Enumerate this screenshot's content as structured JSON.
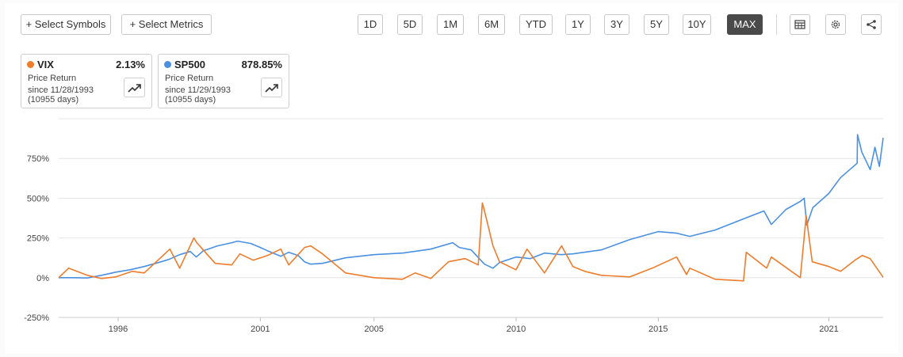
{
  "toolbar": {
    "select_symbols": "+ Select Symbols",
    "select_metrics": "+ Select Metrics",
    "ranges": [
      "1D",
      "5D",
      "1M",
      "6M",
      "YTD",
      "1Y",
      "3Y",
      "5Y",
      "10Y",
      "MAX"
    ],
    "active_range": "MAX",
    "icons": [
      "table-icon",
      "gear-icon",
      "share-icon"
    ]
  },
  "legend_cards": [
    {
      "symbol": "VIX",
      "color": "#ee7c2b",
      "value": "2.13%",
      "metric": "Price Return",
      "since": "since 11/28/1993",
      "days": "(10955 days)"
    },
    {
      "symbol": "SP500",
      "color": "#4a90e2",
      "value": "878.85%",
      "metric": "Price Return",
      "since": "since 11/29/1993",
      "days": "(10955 days)"
    }
  ],
  "chart_data": {
    "type": "line",
    "y_unit": "%",
    "ylim": [
      -250,
      1000
    ],
    "yticks": [
      -250,
      0,
      250,
      500,
      750
    ],
    "ytick_labels": [
      "-250%",
      "0%",
      "250%",
      "500%",
      "750%"
    ],
    "xlim": [
      "1993-11-28",
      "2022-11-30"
    ],
    "xticks": [
      "1996",
      "2001",
      "2005",
      "2010",
      "2015",
      "2021"
    ],
    "grid": "horizontal",
    "series": [
      {
        "name": "SP500",
        "color": "#4a90e2",
        "points": [
          [
            "1993-11-28",
            0
          ],
          [
            "1994-06-01",
            0
          ],
          [
            "1994-12-01",
            -2
          ],
          [
            "1995-06-01",
            15
          ],
          [
            "1995-12-01",
            35
          ],
          [
            "1996-06-01",
            50
          ],
          [
            "1996-12-01",
            70
          ],
          [
            "1997-06-01",
            95
          ],
          [
            "1997-10-15",
            115
          ],
          [
            "1998-03-01",
            145
          ],
          [
            "1998-07-15",
            165
          ],
          [
            "1998-10-01",
            130
          ],
          [
            "1998-12-31",
            170
          ],
          [
            "1999-07-01",
            200
          ],
          [
            "1999-12-31",
            220
          ],
          [
            "2000-03-15",
            230
          ],
          [
            "2000-09-01",
            215
          ],
          [
            "2000-12-31",
            190
          ],
          [
            "2001-04-01",
            170
          ],
          [
            "2001-09-21",
            135
          ],
          [
            "2001-12-31",
            160
          ],
          [
            "2002-05-01",
            140
          ],
          [
            "2002-07-23",
            100
          ],
          [
            "2002-10-09",
            85
          ],
          [
            "2003-03-11",
            90
          ],
          [
            "2003-12-31",
            125
          ],
          [
            "2004-12-31",
            145
          ],
          [
            "2005-12-31",
            155
          ],
          [
            "2006-12-31",
            180
          ],
          [
            "2007-10-09",
            220
          ],
          [
            "2008-01-01",
            190
          ],
          [
            "2008-06-01",
            175
          ],
          [
            "2008-11-20",
            85
          ],
          [
            "2009-03-09",
            60
          ],
          [
            "2009-06-01",
            95
          ],
          [
            "2009-12-31",
            130
          ],
          [
            "2010-07-01",
            120
          ],
          [
            "2010-12-31",
            155
          ],
          [
            "2011-08-01",
            145
          ],
          [
            "2011-12-31",
            150
          ],
          [
            "2012-12-31",
            175
          ],
          [
            "2013-12-31",
            240
          ],
          [
            "2014-12-31",
            290
          ],
          [
            "2015-08-25",
            280
          ],
          [
            "2016-02-11",
            260
          ],
          [
            "2016-12-31",
            300
          ],
          [
            "2017-12-31",
            370
          ],
          [
            "2018-09-20",
            420
          ],
          [
            "2018-12-24",
            335
          ],
          [
            "2019-07-01",
            430
          ],
          [
            "2019-12-31",
            480
          ],
          [
            "2020-02-19",
            500
          ],
          [
            "2020-03-23",
            330
          ],
          [
            "2020-06-08",
            440
          ],
          [
            "2020-12-31",
            530
          ],
          [
            "2021-06-01",
            630
          ],
          [
            "2021-12-31",
            720
          ],
          [
            "2022-01-04",
            900
          ],
          [
            "2022-03-01",
            790
          ],
          [
            "2022-06-16",
            680
          ],
          [
            "2022-08-16",
            820
          ],
          [
            "2022-10-12",
            700
          ],
          [
            "2022-11-30",
            880
          ]
        ]
      },
      {
        "name": "VIX",
        "color": "#ee7c2b",
        "points": [
          [
            "1993-11-28",
            0
          ],
          [
            "1994-04-04",
            60
          ],
          [
            "1994-12-01",
            15
          ],
          [
            "1995-06-01",
            -5
          ],
          [
            "1995-12-01",
            5
          ],
          [
            "1996-07-01",
            40
          ],
          [
            "1996-12-01",
            30
          ],
          [
            "1997-10-27",
            180
          ],
          [
            "1998-03-01",
            60
          ],
          [
            "1998-08-31",
            250
          ],
          [
            "1998-10-08",
            220
          ],
          [
            "1999-06-01",
            90
          ],
          [
            "1999-12-31",
            80
          ],
          [
            "2000-04-14",
            150
          ],
          [
            "2000-10-01",
            110
          ],
          [
            "2001-04-04",
            140
          ],
          [
            "2001-09-21",
            180
          ],
          [
            "2002-01-01",
            80
          ],
          [
            "2002-07-24",
            190
          ],
          [
            "2002-10-09",
            200
          ],
          [
            "2003-03-11",
            150
          ],
          [
            "2003-12-31",
            30
          ],
          [
            "2004-12-31",
            0
          ],
          [
            "2005-12-31",
            -10
          ],
          [
            "2006-06-14",
            30
          ],
          [
            "2006-12-31",
            -5
          ],
          [
            "2007-08-16",
            100
          ],
          [
            "2007-11-26",
            110
          ],
          [
            "2008-03-17",
            120
          ],
          [
            "2008-09-01",
            80
          ],
          [
            "2008-10-24",
            470
          ],
          [
            "2008-11-20",
            420
          ],
          [
            "2009-03-09",
            200
          ],
          [
            "2009-06-01",
            100
          ],
          [
            "2009-12-31",
            50
          ],
          [
            "2010-05-20",
            180
          ],
          [
            "2010-12-31",
            30
          ],
          [
            "2011-08-08",
            200
          ],
          [
            "2011-12-31",
            70
          ],
          [
            "2012-06-01",
            40
          ],
          [
            "2012-12-31",
            15
          ],
          [
            "2013-12-31",
            5
          ],
          [
            "2014-10-15",
            60
          ],
          [
            "2015-08-24",
            130
          ],
          [
            "2015-12-31",
            20
          ],
          [
            "2016-02-11",
            60
          ],
          [
            "2016-12-31",
            -10
          ],
          [
            "2017-12-31",
            -20
          ],
          [
            "2018-02-05",
            160
          ],
          [
            "2018-10-25",
            60
          ],
          [
            "2018-12-24",
            130
          ],
          [
            "2019-12-31",
            0
          ],
          [
            "2020-03-16",
            390
          ],
          [
            "2020-06-01",
            100
          ],
          [
            "2020-12-31",
            70
          ],
          [
            "2021-06-01",
            40
          ],
          [
            "2021-12-01",
            110
          ],
          [
            "2022-03-07",
            140
          ],
          [
            "2022-06-16",
            120
          ],
          [
            "2022-11-30",
            2
          ]
        ]
      }
    ]
  }
}
